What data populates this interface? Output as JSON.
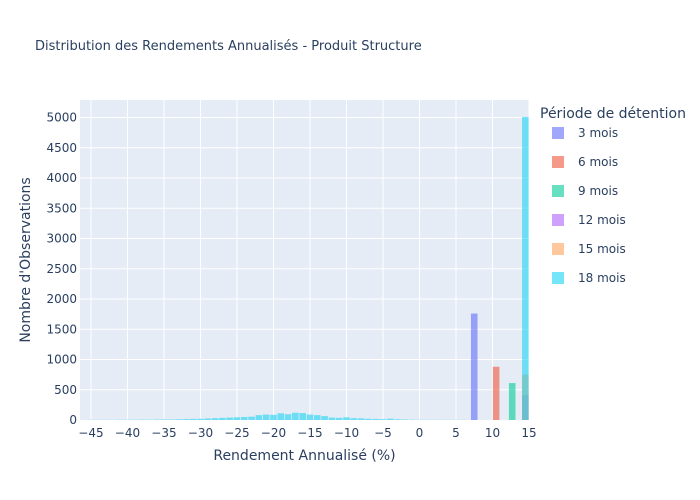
{
  "chart_data": {
    "type": "bar",
    "title": "Distribution des Rendements Annualisés - Produit Structure",
    "xlabel": "Rendement Annualisé (%)",
    "ylabel": "Nombre d'Observations",
    "xlim": [
      -46.5,
      15
    ],
    "ylim": [
      0,
      5290
    ],
    "x_ticks": [
      -45,
      -40,
      -35,
      -30,
      -25,
      -20,
      -15,
      -10,
      -5,
      0,
      5,
      10,
      15
    ],
    "y_ticks": [
      0,
      500,
      1000,
      1500,
      2000,
      2500,
      3000,
      3500,
      4000,
      4500,
      5000
    ],
    "x_tick_labels": [
      "−45",
      "−40",
      "−35",
      "−30",
      "−25",
      "−20",
      "−15",
      "−10",
      "−5",
      "0",
      "5",
      "10",
      "15"
    ],
    "y_tick_labels": [
      "0",
      "500",
      "1000",
      "1500",
      "2000",
      "2500",
      "3000",
      "3500",
      "4000",
      "4500",
      "5000"
    ],
    "bin_width": 0.9,
    "grid": true,
    "barmode": "overlay",
    "opacity": 0.6,
    "legend_title": "Période de détention",
    "legend_position": "right",
    "series": [
      {
        "name": "3 mois",
        "color": "#636efa",
        "points": [
          {
            "x": 7.5,
            "y": 1760
          }
        ]
      },
      {
        "name": "6 mois",
        "color": "#ef553b",
        "points": [
          {
            "x": 10.5,
            "y": 880
          }
        ]
      },
      {
        "name": "9 mois",
        "color": "#00cc96",
        "points": [
          {
            "x": 12.7,
            "y": 610
          }
        ]
      },
      {
        "name": "12 mois",
        "color": "#ab63fa",
        "points": [
          {
            "x": 14.5,
            "y": 410
          }
        ]
      },
      {
        "name": "15 mois",
        "color": "#ffa15a",
        "points": [
          {
            "x": 14.5,
            "y": 750
          }
        ]
      },
      {
        "name": "18 mois",
        "color": "#19d3f3",
        "points": [
          {
            "x": -45,
            "y": 3
          },
          {
            "x": -44,
            "y": 2
          },
          {
            "x": -43,
            "y": 3
          },
          {
            "x": -42,
            "y": 2
          },
          {
            "x": -41,
            "y": 4
          },
          {
            "x": -40,
            "y": 5
          },
          {
            "x": -39,
            "y": 4
          },
          {
            "x": -38,
            "y": 6
          },
          {
            "x": -37,
            "y": 5
          },
          {
            "x": -36,
            "y": 7
          },
          {
            "x": -35,
            "y": 9
          },
          {
            "x": -34,
            "y": 8
          },
          {
            "x": -33,
            "y": 12
          },
          {
            "x": -32,
            "y": 15
          },
          {
            "x": -31,
            "y": 18
          },
          {
            "x": -30,
            "y": 20
          },
          {
            "x": -29,
            "y": 25
          },
          {
            "x": -28,
            "y": 30
          },
          {
            "x": -27,
            "y": 35
          },
          {
            "x": -26,
            "y": 40
          },
          {
            "x": -25,
            "y": 45
          },
          {
            "x": -24,
            "y": 50
          },
          {
            "x": -23,
            "y": 55
          },
          {
            "x": -22,
            "y": 80
          },
          {
            "x": -21,
            "y": 90
          },
          {
            "x": -20,
            "y": 85
          },
          {
            "x": -19,
            "y": 110
          },
          {
            "x": -18,
            "y": 95
          },
          {
            "x": -17,
            "y": 120
          },
          {
            "x": -16,
            "y": 115
          },
          {
            "x": -15,
            "y": 90
          },
          {
            "x": -14,
            "y": 80
          },
          {
            "x": -13,
            "y": 65
          },
          {
            "x": -12,
            "y": 40
          },
          {
            "x": -11,
            "y": 35
          },
          {
            "x": -10,
            "y": 45
          },
          {
            "x": -9,
            "y": 30
          },
          {
            "x": -8,
            "y": 28
          },
          {
            "x": -7,
            "y": 20
          },
          {
            "x": -6,
            "y": 18
          },
          {
            "x": -5,
            "y": 15
          },
          {
            "x": -4,
            "y": 22
          },
          {
            "x": -3,
            "y": 12
          },
          {
            "x": -2,
            "y": 8
          },
          {
            "x": -1,
            "y": 5
          },
          {
            "x": 0,
            "y": 4
          },
          {
            "x": 1,
            "y": 3
          },
          {
            "x": 2,
            "y": 3
          },
          {
            "x": 3,
            "y": 2
          },
          {
            "x": 4,
            "y": 2
          },
          {
            "x": 5,
            "y": 2
          },
          {
            "x": 6,
            "y": 2
          },
          {
            "x": 14.5,
            "y": 5010
          }
        ]
      }
    ]
  }
}
